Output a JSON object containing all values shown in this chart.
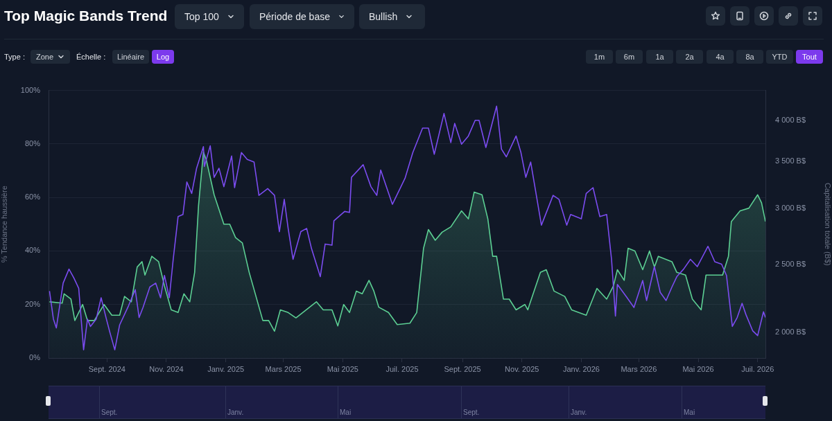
{
  "chart_data": {
    "type": "area",
    "title": "Top Magic Bands Trend",
    "ylabel": "% Tendance haussière",
    "y2label": "Capitalisation totale (B$)",
    "xlim": [
      "2024-07-03",
      "2026-07-09"
    ],
    "xticks": [
      {
        "value": "2024-09-01",
        "label": "Sept. 2024"
      },
      {
        "value": "2024-11-01",
        "label": "Nov. 2024"
      },
      {
        "value": "2025-01-01",
        "label": "Janv. 2025"
      },
      {
        "value": "2025-03-01",
        "label": "Mars 2025"
      },
      {
        "value": "2025-05-01",
        "label": "Mai 2025"
      },
      {
        "value": "2025-07-01",
        "label": "Juil. 2025"
      },
      {
        "value": "2025-09-01",
        "label": "Sept. 2025"
      },
      {
        "value": "2025-11-01",
        "label": "Nov. 2025"
      },
      {
        "value": "2026-01-01",
        "label": "Janv. 2026"
      },
      {
        "value": "2026-03-01",
        "label": "Mars 2026"
      },
      {
        "value": "2026-05-01",
        "label": "Mai 2026"
      },
      {
        "value": "2026-07-01",
        "label": "Juil. 2026"
      }
    ],
    "ylim": [
      0,
      100
    ],
    "yticks": [
      {
        "value": 0,
        "label": "0%"
      },
      {
        "value": 20,
        "label": "20%"
      },
      {
        "value": 40,
        "label": "40%"
      },
      {
        "value": 60,
        "label": "60%"
      },
      {
        "value": 80,
        "label": "80%"
      },
      {
        "value": 100,
        "label": "100%"
      }
    ],
    "y2lim": [
      1840,
      4410
    ],
    "y2ticks": [
      {
        "value": 2000,
        "label": "2 000 B$"
      },
      {
        "value": 2500,
        "label": "2 500 B$"
      },
      {
        "value": 3000,
        "label": "3 000 B$"
      },
      {
        "value": 3500,
        "label": "3 500 B$"
      },
      {
        "value": 4000,
        "label": "4 000 B$"
      }
    ],
    "log": "y2",
    "grid": "y",
    "series": [
      {
        "type": "area",
        "color": "#5ccf93",
        "x": [
          "2024-07-04",
          "2024-07-17",
          "2024-07-19",
          "2024-07-26",
          "2024-07-30",
          "2024-08-07",
          "2024-08-12",
          "2024-08-19",
          "2024-08-29",
          "2024-09-06",
          "2024-09-14",
          "2024-09-19",
          "2024-09-26",
          "2024-10-02",
          "2024-10-07",
          "2024-10-10",
          "2024-10-17",
          "2024-10-24",
          "2024-10-30",
          "2024-11-06",
          "2024-11-13",
          "2024-11-19",
          "2024-11-25",
          "2024-11-30",
          "2024-12-04",
          "2024-12-09",
          "2024-12-12",
          "2024-12-20",
          "2024-12-30",
          "2025-01-05",
          "2025-01-11",
          "2025-01-18",
          "2025-01-25",
          "2025-02-08",
          "2025-02-14",
          "2025-02-20",
          "2025-02-26",
          "2025-03-06",
          "2025-03-14",
          "2025-03-28",
          "2025-04-04",
          "2025-04-11",
          "2025-04-20",
          "2025-04-26",
          "2025-05-02",
          "2025-05-08",
          "2025-05-15",
          "2025-05-21",
          "2025-05-28",
          "2025-06-02",
          "2025-06-07",
          "2025-06-17",
          "2025-06-26",
          "2025-07-09",
          "2025-07-16",
          "2025-07-23",
          "2025-07-28",
          "2025-08-04",
          "2025-08-11",
          "2025-08-20",
          "2025-08-31",
          "2025-09-07",
          "2025-09-13",
          "2025-09-21",
          "2025-09-27",
          "2025-10-02",
          "2025-10-06",
          "2025-10-13",
          "2025-10-19",
          "2025-10-26",
          "2025-11-04",
          "2025-11-07",
          "2025-11-20",
          "2025-11-26",
          "2025-12-04",
          "2025-12-15",
          "2025-12-22",
          "2026-01-06",
          "2026-01-17",
          "2026-01-27",
          "2026-02-03",
          "2026-02-07",
          "2026-02-14",
          "2026-02-18",
          "2026-02-25",
          "2026-03-05",
          "2026-03-12",
          "2026-03-17",
          "2026-03-21",
          "2026-04-04",
          "2026-04-09",
          "2026-04-18",
          "2026-04-25",
          "2026-05-04",
          "2026-05-09",
          "2026-05-18",
          "2026-05-26",
          "2026-06-01",
          "2026-06-04",
          "2026-06-13",
          "2026-06-22",
          "2026-07-01",
          "2026-07-05",
          "2026-07-09"
        ],
        "values": [
          21,
          20.5,
          24,
          22,
          14,
          20,
          14,
          14,
          20,
          16,
          16,
          23,
          21,
          34,
          36,
          31,
          38,
          36,
          27,
          18,
          17,
          24,
          21,
          32,
          57,
          77,
          74,
          61,
          50,
          50,
          45,
          43,
          32,
          14,
          14,
          10,
          18,
          17,
          15,
          19,
          21,
          18,
          18,
          12,
          20,
          17,
          25,
          24,
          29,
          25,
          19,
          17,
          12.5,
          13,
          17,
          41,
          48,
          44,
          47,
          49,
          55,
          52,
          62,
          61,
          52,
          38,
          38,
          22,
          22,
          18,
          20,
          18,
          32,
          33,
          25,
          23,
          18,
          16,
          26,
          22,
          27,
          33,
          29,
          41,
          40,
          33,
          40,
          34,
          38,
          36,
          32,
          31,
          22,
          18,
          31,
          31,
          31,
          38,
          51,
          55,
          56,
          61,
          58,
          51
        ]
      },
      {
        "type": "line",
        "axis": "y2",
        "color": "#7b4cf0",
        "x": [
          "2024-07-04",
          "2024-07-08",
          "2024-07-11",
          "2024-07-18",
          "2024-07-24",
          "2024-07-29",
          "2024-08-03",
          "2024-08-08",
          "2024-08-12",
          "2024-08-15",
          "2024-08-21",
          "2024-08-26",
          "2024-08-31",
          "2024-09-04",
          "2024-09-09",
          "2024-09-14",
          "2024-09-23",
          "2024-09-30",
          "2024-10-04",
          "2024-10-08",
          "2024-10-15",
          "2024-10-21",
          "2024-10-26",
          "2024-10-30",
          "2024-11-04",
          "2024-11-08",
          "2024-11-13",
          "2024-11-18",
          "2024-11-22",
          "2024-11-27",
          "2024-12-02",
          "2024-12-09",
          "2024-12-10",
          "2024-12-16",
          "2024-12-20",
          "2024-12-25",
          "2024-12-30",
          "2025-01-07",
          "2025-01-10",
          "2025-01-17",
          "2025-01-23",
          "2025-01-30",
          "2025-02-04",
          "2025-02-13",
          "2025-02-20",
          "2025-02-25",
          "2025-03-02",
          "2025-03-06",
          "2025-03-11",
          "2025-03-19",
          "2025-03-25",
          "2025-03-30",
          "2025-04-08",
          "2025-04-13",
          "2025-04-20",
          "2025-04-22",
          "2025-05-03",
          "2025-05-08",
          "2025-05-10",
          "2025-05-22",
          "2025-05-30",
          "2025-06-05",
          "2025-06-09",
          "2025-06-21",
          "2025-07-04",
          "2025-07-12",
          "2025-07-22",
          "2025-07-28",
          "2025-08-03",
          "2025-08-13",
          "2025-08-20",
          "2025-08-24",
          "2025-08-31",
          "2025-09-07",
          "2025-09-14",
          "2025-09-18",
          "2025-09-25",
          "2025-10-06",
          "2025-10-11",
          "2025-10-16",
          "2025-10-26",
          "2025-10-31",
          "2025-11-05",
          "2025-11-10",
          "2025-11-21",
          "2025-12-03",
          "2025-12-09",
          "2025-12-17",
          "2025-12-21",
          "2026-01-01",
          "2026-01-06",
          "2026-01-13",
          "2026-01-20",
          "2026-01-27",
          "2026-02-01",
          "2026-02-05",
          "2026-02-07",
          "2026-02-17",
          "2026-02-24",
          "2026-03-05",
          "2026-03-09",
          "2026-03-17",
          "2026-03-23",
          "2026-03-29",
          "2026-04-04",
          "2026-04-09",
          "2026-04-16",
          "2026-04-23",
          "2026-04-30",
          "2026-05-11",
          "2026-05-18",
          "2026-05-25",
          "2026-05-30",
          "2026-06-05",
          "2026-06-10",
          "2026-06-15",
          "2026-06-19",
          "2026-06-26",
          "2026-07-01",
          "2026-07-07",
          "2026-07-09"
        ],
        "values": [
          2290,
          2090,
          2030,
          2350,
          2460,
          2390,
          2310,
          1890,
          2090,
          2040,
          2090,
          2240,
          2100,
          2000,
          1890,
          2050,
          2180,
          2300,
          2100,
          2170,
          2320,
          2350,
          2240,
          2410,
          2240,
          2540,
          2920,
          2940,
          3270,
          3150,
          3420,
          3670,
          3440,
          3680,
          3320,
          3420,
          3220,
          3560,
          3210,
          3600,
          3520,
          3490,
          3130,
          3200,
          3130,
          2780,
          3090,
          2810,
          2540,
          2780,
          2810,
          2630,
          2400,
          2670,
          2660,
          2880,
          2970,
          2960,
          3320,
          3460,
          3220,
          3130,
          3400,
          3040,
          3310,
          3600,
          3900,
          3900,
          3580,
          4090,
          3720,
          3960,
          3700,
          3800,
          4000,
          4000,
          3660,
          4190,
          3640,
          3550,
          3800,
          3600,
          3320,
          3490,
          2840,
          3130,
          3090,
          2840,
          2940,
          2900,
          3150,
          3210,
          2920,
          2940,
          2540,
          2110,
          2340,
          2240,
          2170,
          2370,
          2220,
          2480,
          2280,
          2220,
          2320,
          2400,
          2460,
          2540,
          2480,
          2650,
          2520,
          2500,
          2410,
          2040,
          2100,
          2200,
          2120,
          2010,
          1980,
          2140,
          2100
        ]
      }
    ],
    "annotations": [
      "Top 100",
      "Période de base",
      "Bullish",
      "Type :",
      "Zone",
      "Échelle :",
      "Linéaire",
      "Log",
      "1m",
      "6m",
      "1a",
      "2a",
      "4a",
      "8a",
      "YTD",
      "Tout",
      "Sept.",
      "Janv.",
      "Mai",
      "Sept.",
      "Janv.",
      "Mai"
    ]
  }
}
